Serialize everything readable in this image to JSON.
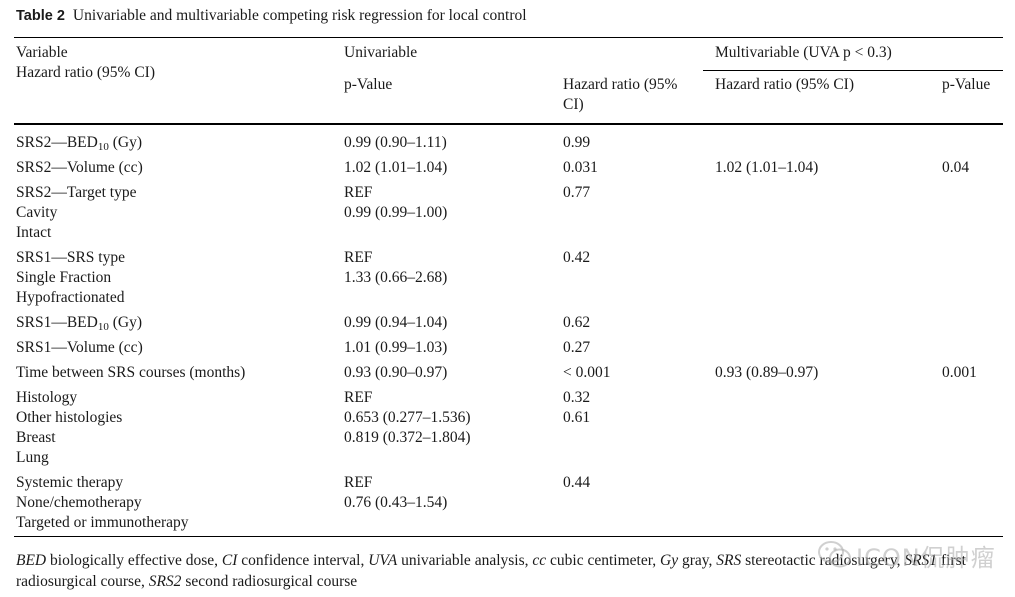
{
  "title": {
    "label": "Table 2",
    "text": "Univariable and multivariable competing risk regression for local control"
  },
  "header": {
    "variable": "Variable",
    "variable_sub": "Hazard ratio (95% CI)",
    "univariable": "Univariable",
    "multivariable": "Multivariable (UVA p < 0.3)",
    "uva_col1": "p-Value",
    "uva_col2_line1": "Hazard ratio (95%",
    "uva_col2_line2": "CI)",
    "mva_col1": "Hazard ratio (95% CI)",
    "mva_col2": "p-Value"
  },
  "rows": [
    {
      "var": [
        "SRS2—BED|10| (Gy)"
      ],
      "uva_hr": [
        "0.99 (0.90–1.11)"
      ],
      "uva_p": [
        "0.99"
      ],
      "mva_hr": [],
      "mva_p": []
    },
    {
      "var": [
        "SRS2—Volume (cc)"
      ],
      "uva_hr": [
        "1.02 (1.01–1.04)"
      ],
      "uva_p": [
        "0.031"
      ],
      "mva_hr": [
        "1.02 (1.01–1.04)"
      ],
      "mva_p": [
        "0.04"
      ]
    },
    {
      "var": [
        "SRS2—Target type",
        "Cavity",
        "Intact"
      ],
      "uva_hr": [
        "REF",
        "0.99 (0.99–1.00)"
      ],
      "uva_p": [
        "0.77"
      ],
      "mva_hr": [],
      "mva_p": []
    },
    {
      "var": [
        "SRS1—SRS type",
        "Single Fraction",
        "Hypofractionated"
      ],
      "uva_hr": [
        "REF",
        "1.33 (0.66–2.68)"
      ],
      "uva_p": [
        "0.42"
      ],
      "mva_hr": [],
      "mva_p": []
    },
    {
      "var": [
        "SRS1—BED|10| (Gy)"
      ],
      "uva_hr": [
        "0.99 (0.94–1.04)"
      ],
      "uva_p": [
        "0.62"
      ],
      "mva_hr": [],
      "mva_p": []
    },
    {
      "var": [
        "SRS1—Volume (cc)"
      ],
      "uva_hr": [
        "1.01 (0.99–1.03)"
      ],
      "uva_p": [
        "0.27"
      ],
      "mva_hr": [],
      "mva_p": []
    },
    {
      "var": [
        "Time between SRS courses (months)"
      ],
      "uva_hr": [
        "0.93 (0.90–0.97)"
      ],
      "uva_p": [
        "< 0.001"
      ],
      "mva_hr": [
        "0.93 (0.89–0.97)"
      ],
      "mva_p": [
        "0.001"
      ]
    },
    {
      "var": [
        "Histology",
        "Other histologies",
        "Breast",
        "Lung"
      ],
      "uva_hr": [
        "REF",
        "0.653 (0.277–1.536)",
        "0.819 (0.372–1.804)"
      ],
      "uva_p": [
        "0.32",
        "0.61"
      ],
      "mva_hr": [],
      "mva_p": []
    },
    {
      "var": [
        "Systemic therapy",
        "None/chemotherapy",
        "Targeted or immunotherapy"
      ],
      "uva_hr": [
        "REF",
        "0.76 (0.43–1.54)"
      ],
      "uva_p": [
        "0.44"
      ],
      "mva_hr": [],
      "mva_p": []
    }
  ],
  "footnote": [
    {
      "abbr": "BED",
      "def": "biologically effective dose, "
    },
    {
      "abbr": "CI",
      "def": "confidence interval, "
    },
    {
      "abbr": "UVA",
      "def": "univariable analysis, "
    },
    {
      "abbr": "cc",
      "def": "cubic centimeter, "
    },
    {
      "abbr": "Gy",
      "def": "gray, "
    },
    {
      "abbr": "SRS",
      "def": "stereotactic radiosurgery, "
    },
    {
      "abbr": "SRS1",
      "def": "first radiosurgical course, "
    },
    {
      "abbr": "SRS2",
      "def": "second radiosurgical course"
    }
  ],
  "watermark": {
    "text": "ICON侃肿瘤",
    "icon": "wechat-icon"
  }
}
